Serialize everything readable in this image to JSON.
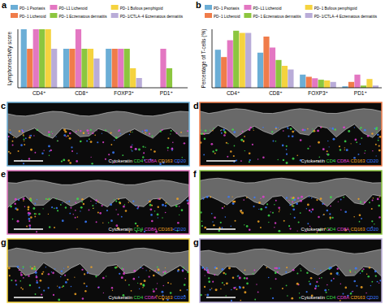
{
  "chart_data": [
    {
      "type": "bar",
      "panel": "a",
      "y_label": "Lymphoreactivity score",
      "categories": [
        "CD4⁺",
        "CD8⁺",
        "FOXP3⁺",
        "PD1⁺"
      ],
      "ylim": [
        0,
        3
      ],
      "tick_labels": "x",
      "series": [
        {
          "name": "PD−1 Psoriasis",
          "color": "#6baed6",
          "values": [
            3,
            2,
            2,
            0
          ]
        },
        {
          "name": "PD−1 Lichenoid",
          "color": "#f07c4a",
          "values": [
            2,
            2,
            2,
            0
          ]
        },
        {
          "name": "PD−L1 Lichenoid",
          "color": "#e377c2",
          "values": [
            3,
            3,
            2,
            2
          ]
        },
        {
          "name": "PD−1 Eczematous dermatitis",
          "color": "#8cc63f",
          "values": [
            3,
            2,
            2,
            1
          ]
        },
        {
          "name": "PD−1 Bullous pemphigoid",
          "color": "#f5d33f",
          "values": [
            3,
            2,
            1,
            0
          ]
        },
        {
          "name": "PD−1/CTLA−4 Eczematous dermatitis",
          "color": "#b9acd8",
          "values": [
            2,
            1.5,
            0.5,
            0
          ]
        }
      ]
    },
    {
      "type": "bar",
      "panel": "b",
      "y_label": "Percentage of T-cells (%)",
      "categories": [
        "CD4⁺",
        "CD8⁺",
        "FOXP3⁺",
        "PD1⁺"
      ],
      "ylim": [
        0,
        80
      ],
      "tick_labels": "x",
      "series": [
        {
          "name": "PD−1 Psoriasis",
          "color": "#6baed6",
          "values": [
            52,
            48,
            18,
            2
          ]
        },
        {
          "name": "PD−1 Lichenoid",
          "color": "#f07c4a",
          "values": [
            42,
            70,
            15,
            8
          ]
        },
        {
          "name": "PD−L1 Lichenoid",
          "color": "#e377c2",
          "values": [
            65,
            55,
            13,
            18
          ]
        },
        {
          "name": "PD−1 Eczematous dermatitis",
          "color": "#8cc63f",
          "values": [
            78,
            38,
            11,
            3
          ]
        },
        {
          "name": "PD−1 Bullous pemphigoid",
          "color": "#f5d33f",
          "values": [
            75,
            30,
            10,
            12
          ]
        },
        {
          "name": "PD−1/CTLA−4 Eczematous dermatitis",
          "color": "#b9acd8",
          "values": [
            75,
            25,
            8,
            3
          ]
        }
      ]
    }
  ],
  "images": {
    "stains": [
      {
        "text": "Cytokeratin",
        "color": "#ffffff"
      },
      {
        "text": "CD4",
        "color": "#3ddc4a"
      },
      {
        "text": "CD8A",
        "color": "#e040d0"
      },
      {
        "text": "CD163",
        "color": "#f5a623"
      },
      {
        "text": "CD20",
        "color": "#3a7bff"
      }
    ],
    "panels": [
      {
        "label": "c",
        "border": "#6baed6"
      },
      {
        "label": "d",
        "border": "#f07c4a"
      },
      {
        "label": "e",
        "border": "#e377c2"
      },
      {
        "label": "f",
        "border": "#8cc63f"
      },
      {
        "label": "g",
        "border": "#f5d33f"
      },
      {
        "label": "g",
        "border": "#b9acd8"
      }
    ]
  }
}
